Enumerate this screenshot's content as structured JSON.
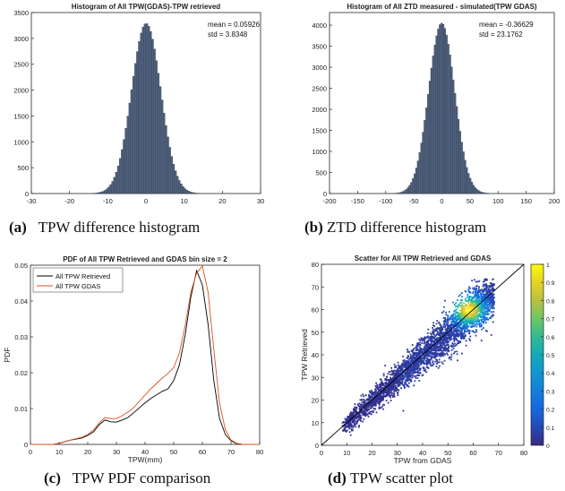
{
  "captions": {
    "a_letter": "(a)",
    "a_text": "TPW difference histogram",
    "b_letter": "(b)",
    "b_text": "ZTD difference histogram",
    "c_letter": "(c)",
    "c_text": "TPW PDF comparison",
    "d_letter": "(d)",
    "d_text": "TPW scatter plot"
  },
  "colors": {
    "bar": "#50627e",
    "retrieved": "#000000",
    "gdas": "#d9501d",
    "axis": "#262626",
    "line11": "#000000"
  },
  "chart_data": [
    {
      "id": "a",
      "type": "bar",
      "title": "Histogram of All TPW(GDAS)-TPW retrieved",
      "annotations": [
        "mean = 0.05926",
        "std = 3.8348"
      ],
      "xlim": [
        -30,
        30
      ],
      "ylim": [
        0,
        3500
      ],
      "xticks": [
        -30,
        -20,
        -10,
        0,
        10,
        20,
        30
      ],
      "yticks": [
        0,
        500,
        1000,
        1500,
        2000,
        2500,
        3000,
        3500
      ],
      "distribution": {
        "mean": 0.05926,
        "std": 3.8348,
        "peak_count": 3290,
        "bin_width": 0.5
      }
    },
    {
      "id": "b",
      "type": "bar",
      "title": "Histogram of All ZTD measured - simulated(TPW GDAS)",
      "annotations": [
        "mean = -0.36629",
        "std = 23.1762"
      ],
      "xlim": [
        -200,
        200
      ],
      "ylim": [
        0,
        4300
      ],
      "xticks": [
        -200,
        -150,
        -100,
        -50,
        0,
        50,
        100,
        150,
        200
      ],
      "yticks": [
        0,
        500,
        1000,
        1500,
        2000,
        2500,
        3000,
        3500,
        4000
      ],
      "distribution": {
        "mean": -0.36629,
        "std": 23.1762,
        "peak_count": 4050,
        "bin_width": 3
      }
    },
    {
      "id": "c",
      "type": "line",
      "title": "PDF of All TPW Retrieved and GDAS bin size = 2",
      "xlabel": "TPW(mm)",
      "ylabel": "PDF",
      "xlim": [
        0,
        80
      ],
      "ylim": [
        0,
        0.05
      ],
      "xticks": [
        0,
        10,
        20,
        30,
        40,
        50,
        60,
        70,
        80
      ],
      "yticks": [
        0,
        0.01,
        0.02,
        0.03,
        0.04,
        0.05
      ],
      "legend": "top-left",
      "series": [
        {
          "name": "All TPW Retrieved",
          "x": [
            0,
            4,
            8,
            10,
            12,
            14,
            16,
            18,
            20,
            22,
            24,
            26,
            28,
            30,
            32,
            34,
            36,
            38,
            40,
            42,
            44,
            46,
            48,
            50,
            52,
            54,
            56,
            58,
            60,
            62,
            64,
            66,
            68,
            70,
            72,
            74,
            76,
            78,
            80
          ],
          "y": [
            0,
            0,
            0,
            0.0003,
            0.0008,
            0.0012,
            0.0015,
            0.0018,
            0.0025,
            0.0035,
            0.0055,
            0.0068,
            0.0063,
            0.0062,
            0.0068,
            0.0075,
            0.0088,
            0.0102,
            0.0116,
            0.0128,
            0.0138,
            0.0148,
            0.0155,
            0.0178,
            0.0222,
            0.0305,
            0.0412,
            0.0485,
            0.0445,
            0.0335,
            0.0178,
            0.0072,
            0.0028,
            0.001,
            0.0002,
            0,
            0,
            0,
            0
          ]
        },
        {
          "name": "All TPW GDAS",
          "x": [
            0,
            4,
            8,
            10,
            12,
            14,
            16,
            18,
            20,
            22,
            24,
            26,
            28,
            30,
            32,
            34,
            36,
            38,
            40,
            42,
            44,
            46,
            48,
            50,
            52,
            54,
            56,
            58,
            60,
            62,
            64,
            66,
            68,
            70,
            72,
            74,
            76,
            78,
            80
          ],
          "y": [
            0,
            0,
            0,
            0.0003,
            0.0008,
            0.0012,
            0.0016,
            0.002,
            0.0028,
            0.004,
            0.006,
            0.0075,
            0.0072,
            0.0072,
            0.008,
            0.009,
            0.0102,
            0.012,
            0.0138,
            0.0155,
            0.017,
            0.0185,
            0.0198,
            0.0215,
            0.0255,
            0.0332,
            0.0425,
            0.0478,
            0.0498,
            0.0425,
            0.0265,
            0.0115,
            0.0042,
            0.0012,
            0.0003,
            0,
            0,
            0,
            0
          ]
        }
      ]
    },
    {
      "id": "d",
      "type": "scatter",
      "title": "Scatter for All TPW Retrieved and GDAS",
      "xlabel": "TPW from GDAS",
      "ylabel": "TPW Retrieved",
      "xlim": [
        0,
        80
      ],
      "ylim": [
        0,
        80
      ],
      "xticks": [
        0,
        10,
        20,
        30,
        40,
        50,
        60,
        70,
        80
      ],
      "yticks": [
        0,
        10,
        20,
        30,
        40,
        50,
        60,
        70,
        80
      ],
      "colorbar": {
        "range": [
          0,
          1
        ],
        "ticks": [
          "0",
          "0.1",
          "0.2",
          "0.3",
          "0.4",
          "0.5",
          "0.6",
          "0.7",
          "0.8",
          "0.9",
          "1"
        ]
      },
      "reference_line": {
        "x": [
          0,
          80
        ],
        "y": [
          0,
          80
        ]
      },
      "density_peak": {
        "x": 58,
        "y": 60
      }
    }
  ]
}
